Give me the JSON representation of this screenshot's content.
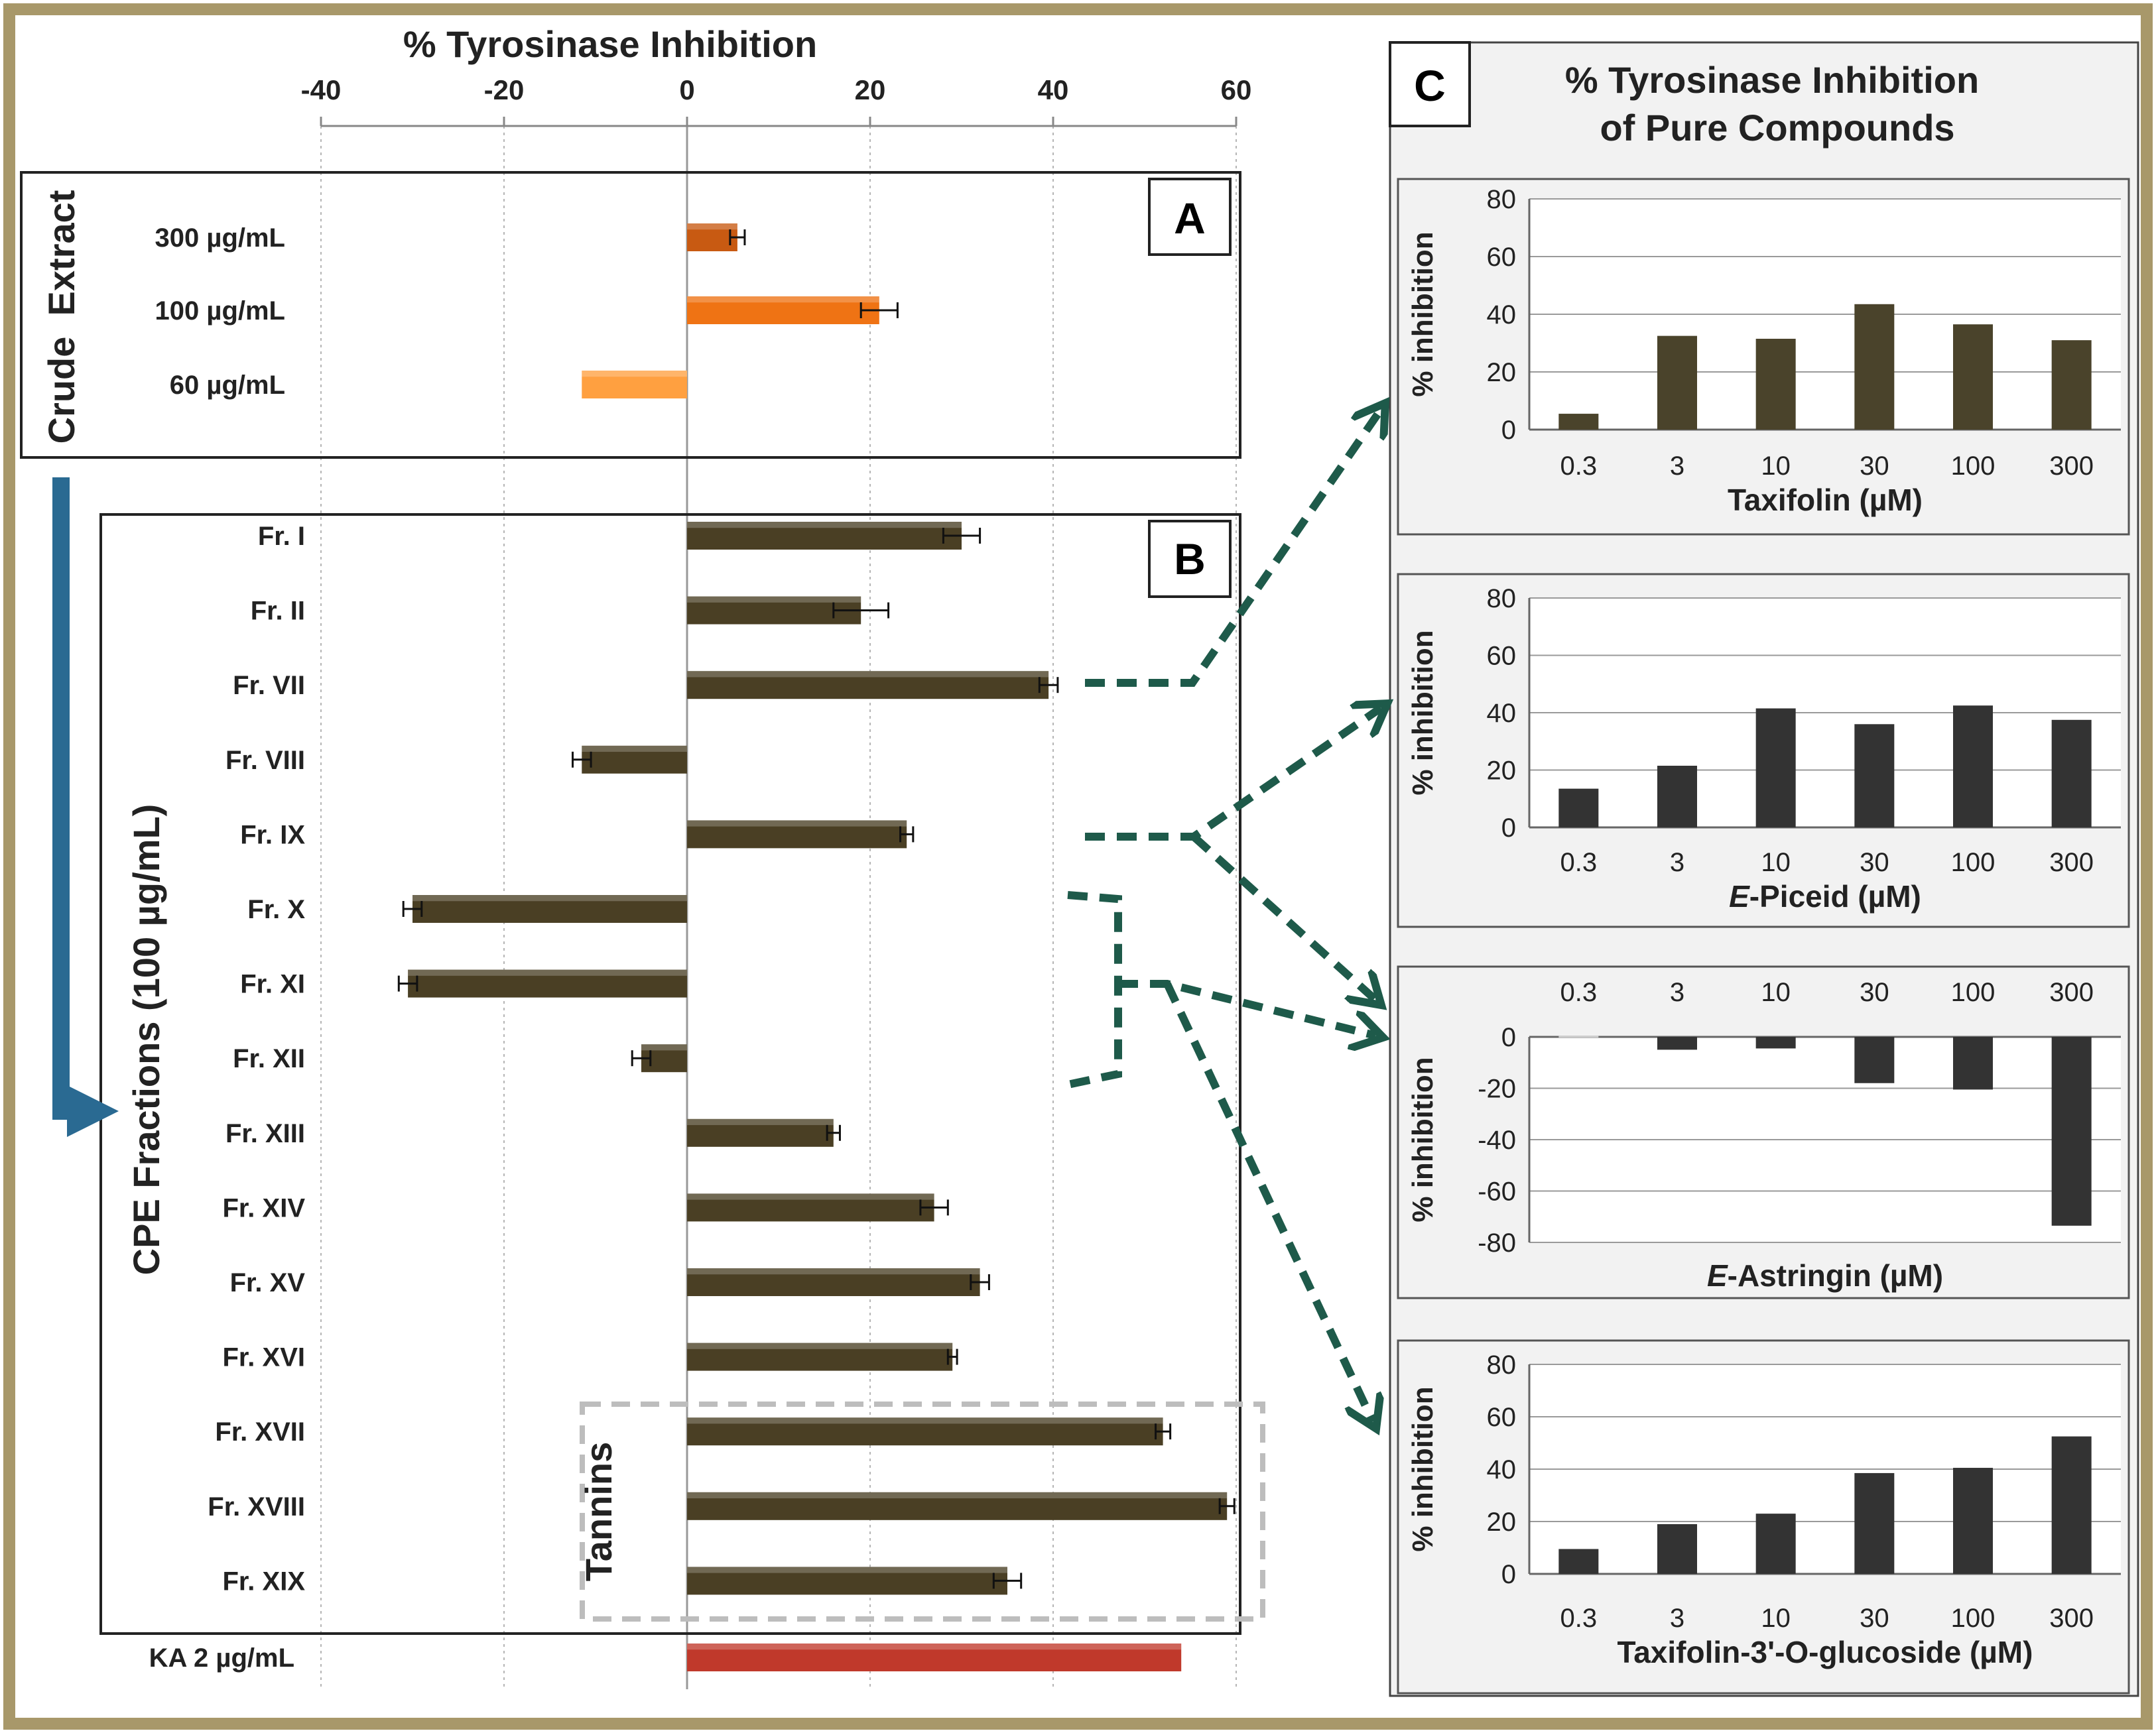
{
  "chart_data": [
    {
      "type": "bar",
      "orientation": "horizontal",
      "title": "% Tyrosinase Inhibition",
      "xlim": [
        -40,
        60
      ],
      "ticks": [
        -40,
        -20,
        0,
        20,
        40,
        60
      ],
      "tick_labels": [
        "-40",
        "-20",
        "0",
        "20",
        "40",
        "60"
      ],
      "panel_a": {
        "label": "A",
        "group_label": "Crude  Extract",
        "categories": [
          "300 µg/mL",
          "100 µg/mL",
          "60 µg/mL"
        ],
        "values": [
          5.5,
          21,
          -11.5
        ],
        "errors": [
          0.8,
          2,
          0
        ],
        "colors": [
          "#c85a12",
          "#ef7314",
          "#ffa040"
        ]
      },
      "panel_b": {
        "label": "B",
        "group_label": "CPE Fractions (100 µg/mL)",
        "categories": [
          "Fr. I",
          "Fr. II",
          "Fr. VII",
          "Fr. VIII",
          "Fr. IX",
          "Fr. X",
          "Fr. XI",
          "Fr. XII",
          "Fr. XIII",
          "Fr. XIV",
          "Fr. XV",
          "Fr. XVI",
          "Fr. XVII",
          "Fr. XVIII",
          "Fr. XIX"
        ],
        "values": [
          30,
          19,
          39.5,
          -11.5,
          24,
          -30,
          -30.5,
          -5,
          16,
          27,
          32,
          29,
          52,
          59,
          35
        ],
        "errors": [
          2,
          3,
          1,
          1,
          0.7,
          1,
          1,
          1,
          0.7,
          1.5,
          1,
          0.5,
          0.8,
          0.8,
          1.5
        ],
        "color": "#4a3f24"
      },
      "control": {
        "label": "KA  2 µg/mL",
        "value": 54,
        "color": "#c0392b"
      },
      "annotation": "Tannins"
    },
    {
      "type": "bar",
      "panel": "C",
      "title_line1": "% Tyrosinase Inhibition",
      "title_line2": "of Pure Compounds",
      "subplots": [
        {
          "xlabel": "Taxifolin (µM)",
          "ylabel": "% inhibition",
          "categories": [
            "0.3",
            "3",
            "10",
            "30",
            "100",
            "300"
          ],
          "values": [
            5.5,
            32.5,
            31.5,
            43.5,
            36.5,
            31
          ],
          "ylim": [
            0,
            80
          ],
          "yticks": [
            0,
            20,
            40,
            60,
            80
          ],
          "ytick_labels": [
            "0",
            "20",
            "40",
            "60",
            "80"
          ],
          "color": "#4a432b"
        },
        {
          "xlabel_italic": "E",
          "xlabel": "-Piceid (µM)",
          "ylabel": "% inhibition",
          "categories": [
            "0.3",
            "3",
            "10",
            "30",
            "100",
            "300"
          ],
          "values": [
            13.5,
            21.5,
            41.5,
            36,
            42.5,
            37.5
          ],
          "ylim": [
            0,
            80
          ],
          "yticks": [
            0,
            20,
            40,
            60,
            80
          ],
          "ytick_labels": [
            "0",
            "20",
            "40",
            "60",
            "80"
          ],
          "color": "#333333"
        },
        {
          "xlabel_italic": "E",
          "xlabel": "-Astringin (µM)",
          "ylabel": "% inhibition",
          "categories": [
            "0.3",
            "3",
            "10",
            "30",
            "100",
            "300"
          ],
          "values": [
            0.5,
            -5,
            -4.5,
            -18,
            -20.5,
            -73.5
          ],
          "ylim": [
            -80,
            0
          ],
          "yticks": [
            0,
            -20,
            -40,
            -60,
            -80
          ],
          "ytick_labels": [
            "0",
            "-20",
            "-40",
            "-60",
            "-80"
          ],
          "color": "#333333"
        },
        {
          "xlabel": "Taxifolin-3'-O-glucoside (µM)",
          "ylabel": "% inhibition",
          "categories": [
            "0.3",
            "3",
            "10",
            "30",
            "100",
            "300"
          ],
          "values": [
            9.5,
            19,
            23,
            38.5,
            40.5,
            52.5
          ],
          "ylim": [
            0,
            80
          ],
          "yticks": [
            0,
            20,
            40,
            60,
            80
          ],
          "ytick_labels": [
            "0",
            "20",
            "40",
            "60",
            "80"
          ],
          "color": "#333333"
        }
      ]
    }
  ]
}
